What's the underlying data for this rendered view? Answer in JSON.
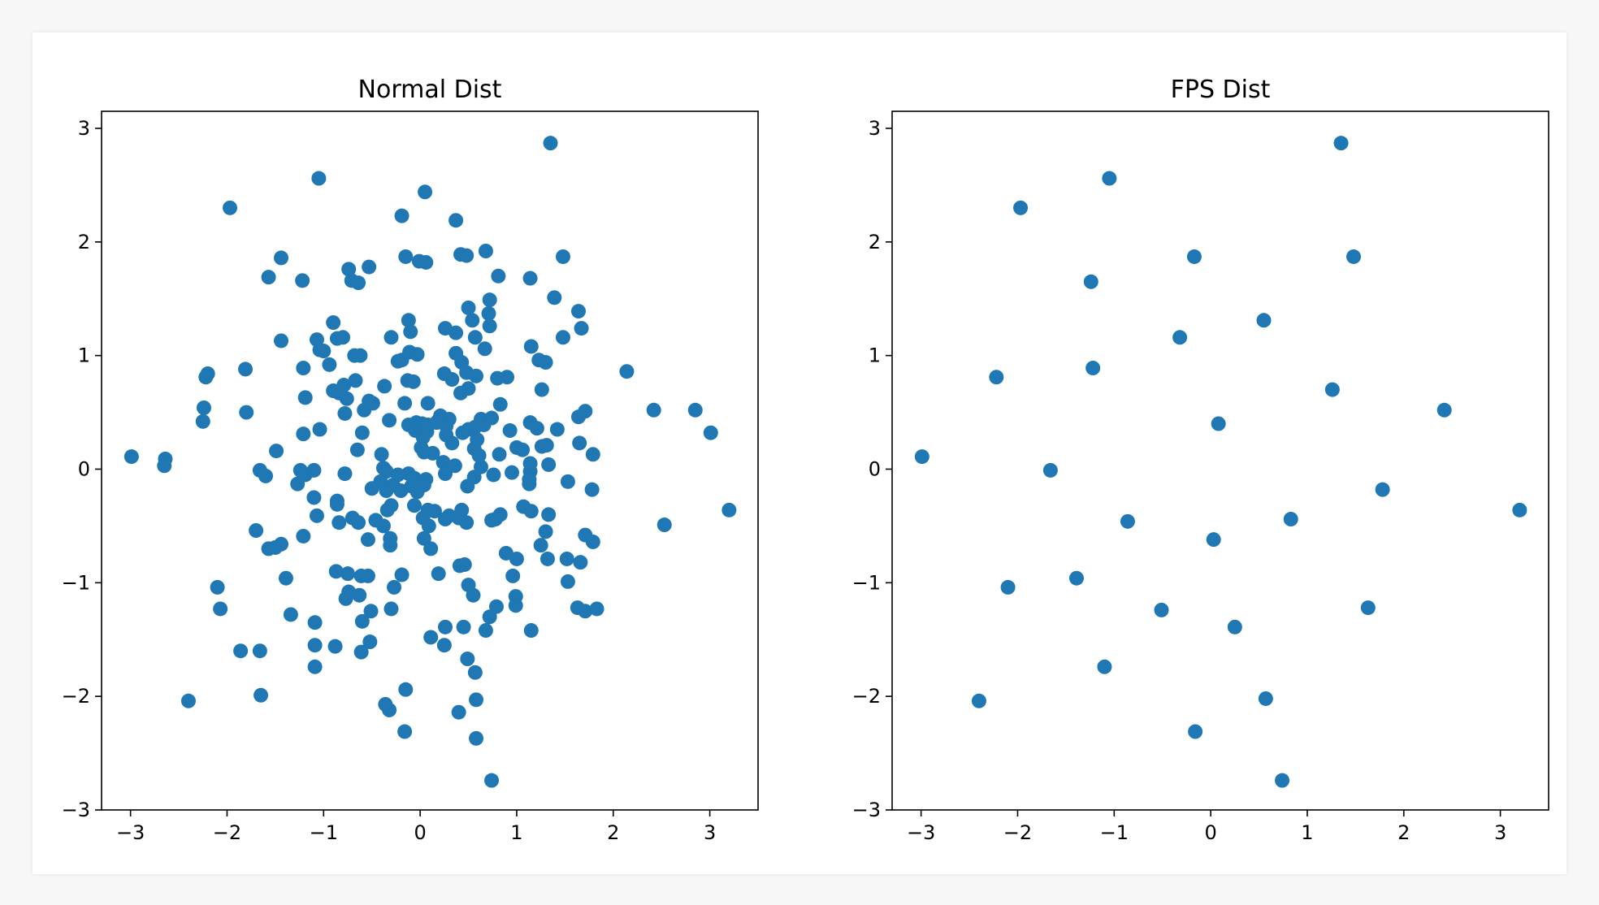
{
  "chart_data": [
    {
      "type": "scatter",
      "title": "Normal Dist",
      "xlabel": "",
      "ylabel": "",
      "xlim": [
        -3.3,
        3.5
      ],
      "ylim": [
        -3.0,
        3.15
      ],
      "xticks": [
        -3,
        -2,
        -1,
        0,
        1,
        2,
        3
      ],
      "yticks": [
        -3,
        -2,
        -1,
        0,
        1,
        2,
        3
      ],
      "grid": false,
      "color": "#1f77b4",
      "points": [
        [
          1.35,
          2.87
        ],
        [
          -1.05,
          2.56
        ],
        [
          0.05,
          2.44
        ],
        [
          -1.97,
          2.3
        ],
        [
          -0.19,
          2.23
        ],
        [
          0.37,
          2.19
        ],
        [
          -1.44,
          1.86
        ],
        [
          0.42,
          1.89
        ],
        [
          0.48,
          1.88
        ],
        [
          0.68,
          1.92
        ],
        [
          1.48,
          1.87
        ],
        [
          -0.15,
          1.87
        ],
        [
          -0.01,
          1.83
        ],
        [
          0.06,
          1.82
        ],
        [
          -0.74,
          1.76
        ],
        [
          -0.53,
          1.78
        ],
        [
          -1.57,
          1.69
        ],
        [
          -1.22,
          1.66
        ],
        [
          -0.71,
          1.66
        ],
        [
          -0.64,
          1.64
        ],
        [
          0.81,
          1.7
        ],
        [
          1.14,
          1.68
        ],
        [
          0.72,
          1.49
        ],
        [
          1.39,
          1.51
        ],
        [
          0.5,
          1.42
        ],
        [
          1.64,
          1.39
        ],
        [
          0.71,
          1.37
        ],
        [
          0.54,
          1.31
        ],
        [
          -0.12,
          1.31
        ],
        [
          -0.9,
          1.29
        ],
        [
          0.26,
          1.24
        ],
        [
          0.72,
          1.26
        ],
        [
          1.67,
          1.24
        ],
        [
          -0.1,
          1.21
        ],
        [
          0.37,
          1.2
        ],
        [
          0.57,
          1.16
        ],
        [
          1.48,
          1.16
        ],
        [
          -0.3,
          1.16
        ],
        [
          -1.44,
          1.13
        ],
        [
          -1.07,
          1.14
        ],
        [
          -0.86,
          1.15
        ],
        [
          -0.8,
          1.16
        ],
        [
          1.15,
          1.08
        ],
        [
          0.67,
          1.06
        ],
        [
          -1.0,
          1.04
        ],
        [
          -1.04,
          1.05
        ],
        [
          -0.11,
          1.03
        ],
        [
          -0.03,
          1.01
        ],
        [
          0.37,
          1.02
        ],
        [
          -0.68,
          1.0
        ],
        [
          -0.62,
          1.0
        ],
        [
          -0.19,
          0.96
        ],
        [
          -0.23,
          0.95
        ],
        [
          1.23,
          0.96
        ],
        [
          1.3,
          0.94
        ],
        [
          0.43,
          0.94
        ],
        [
          -0.94,
          0.92
        ],
        [
          -1.21,
          0.89
        ],
        [
          2.14,
          0.86
        ],
        [
          -2.2,
          0.84
        ],
        [
          -2.22,
          0.81
        ],
        [
          -1.81,
          0.88
        ],
        [
          0.25,
          0.84
        ],
        [
          0.48,
          0.85
        ],
        [
          0.58,
          0.82
        ],
        [
          0.33,
          0.79
        ],
        [
          -0.13,
          0.78
        ],
        [
          -0.07,
          0.77
        ],
        [
          0.8,
          0.8
        ],
        [
          0.9,
          0.81
        ],
        [
          -0.67,
          0.78
        ],
        [
          -0.37,
          0.73
        ],
        [
          0.5,
          0.71
        ],
        [
          1.26,
          0.7
        ],
        [
          0.42,
          0.67
        ],
        [
          -0.79,
          0.74
        ],
        [
          -0.9,
          0.69
        ],
        [
          -0.84,
          0.67
        ],
        [
          -0.76,
          0.62
        ],
        [
          -1.19,
          0.63
        ],
        [
          -0.53,
          0.6
        ],
        [
          -0.49,
          0.58
        ],
        [
          -0.16,
          0.58
        ],
        [
          0.08,
          0.58
        ],
        [
          0.83,
          0.57
        ],
        [
          2.42,
          0.52
        ],
        [
          2.85,
          0.52
        ],
        [
          1.71,
          0.51
        ],
        [
          -2.24,
          0.54
        ],
        [
          -1.8,
          0.5
        ],
        [
          -0.78,
          0.49
        ],
        [
          -0.58,
          0.52
        ],
        [
          0.3,
          0.44
        ],
        [
          0.21,
          0.47
        ],
        [
          0.19,
          0.43
        ],
        [
          0.63,
          0.44
        ],
        [
          0.74,
          0.45
        ],
        [
          1.64,
          0.46
        ],
        [
          -0.32,
          0.43
        ],
        [
          -2.25,
          0.42
        ],
        [
          -0.12,
          0.39
        ],
        [
          -0.04,
          0.41
        ],
        [
          0.02,
          0.4
        ],
        [
          0.08,
          0.39
        ],
        [
          0.17,
          0.41
        ],
        [
          0.27,
          0.38
        ],
        [
          0.5,
          0.35
        ],
        [
          0.57,
          0.37
        ],
        [
          0.66,
          0.39
        ],
        [
          0.93,
          0.34
        ],
        [
          1.14,
          0.41
        ],
        [
          1.21,
          0.36
        ],
        [
          1.42,
          0.35
        ],
        [
          -1.04,
          0.35
        ],
        [
          -0.6,
          0.32
        ],
        [
          -0.05,
          0.34
        ],
        [
          0.07,
          0.33
        ],
        [
          0.44,
          0.32
        ],
        [
          0.27,
          0.3
        ],
        [
          3.01,
          0.32
        ],
        [
          -1.21,
          0.31
        ],
        [
          0.33,
          0.23
        ],
        [
          0.59,
          0.26
        ],
        [
          1.0,
          0.19
        ],
        [
          1.06,
          0.17
        ],
        [
          1.26,
          0.2
        ],
        [
          1.31,
          0.21
        ],
        [
          1.65,
          0.23
        ],
        [
          -1.49,
          0.16
        ],
        [
          -0.65,
          0.17
        ],
        [
          0.01,
          0.19
        ],
        [
          0.04,
          0.15
        ],
        [
          0.13,
          0.14
        ],
        [
          0.56,
          0.18
        ],
        [
          0.61,
          0.12
        ],
        [
          0.82,
          0.13
        ],
        [
          1.79,
          0.13
        ],
        [
          -0.4,
          0.13
        ],
        [
          0.03,
          0.28
        ],
        [
          -2.99,
          0.11
        ],
        [
          -2.64,
          0.09
        ],
        [
          -2.65,
          0.03
        ],
        [
          0.24,
          0.06
        ],
        [
          0.63,
          0.02
        ],
        [
          0.36,
          0.03
        ],
        [
          1.14,
          0.05
        ],
        [
          1.33,
          0.04
        ],
        [
          -0.38,
          0.01
        ],
        [
          -0.35,
          -0.02
        ],
        [
          -0.23,
          -0.05
        ],
        [
          -0.12,
          -0.04
        ],
        [
          -0.06,
          -0.08
        ],
        [
          0.06,
          -0.09
        ],
        [
          0.26,
          -0.04
        ],
        [
          0.56,
          -0.07
        ],
        [
          0.76,
          -0.05
        ],
        [
          0.95,
          -0.03
        ],
        [
          1.14,
          -0.02
        ],
        [
          -1.66,
          -0.01
        ],
        [
          -1.6,
          -0.06
        ],
        [
          -1.24,
          -0.01
        ],
        [
          -1.19,
          -0.05
        ],
        [
          -1.27,
          -0.13
        ],
        [
          -1.1,
          -0.01
        ],
        [
          -0.78,
          -0.04
        ],
        [
          -0.41,
          -0.11
        ],
        [
          -0.28,
          -0.14
        ],
        [
          -0.2,
          -0.19
        ],
        [
          -0.09,
          -0.15
        ],
        [
          -0.03,
          -0.2
        ],
        [
          0.04,
          -0.14
        ],
        [
          1.13,
          -0.09
        ],
        [
          1.53,
          -0.11
        ],
        [
          -0.5,
          -0.17
        ],
        [
          -0.35,
          -0.19
        ],
        [
          0.49,
          -0.15
        ],
        [
          1.13,
          -0.13
        ],
        [
          1.78,
          -0.18
        ],
        [
          -1.1,
          -0.25
        ],
        [
          -0.86,
          -0.28
        ],
        [
          -0.86,
          -0.31
        ],
        [
          -0.3,
          -0.32
        ],
        [
          -0.06,
          -0.32
        ],
        [
          -0.34,
          -0.36
        ],
        [
          0.08,
          -0.36
        ],
        [
          0.15,
          -0.37
        ],
        [
          0.43,
          -0.36
        ],
        [
          1.07,
          -0.33
        ],
        [
          1.33,
          -0.4
        ],
        [
          1.15,
          -0.37
        ],
        [
          3.2,
          -0.36
        ],
        [
          -1.07,
          -0.41
        ],
        [
          -0.7,
          -0.43
        ],
        [
          -0.64,
          -0.47
        ],
        [
          -0.84,
          -0.47
        ],
        [
          -0.46,
          -0.45
        ],
        [
          0.26,
          -0.44
        ],
        [
          0.03,
          -0.43
        ],
        [
          0.3,
          -0.41
        ],
        [
          0.4,
          -0.43
        ],
        [
          0.48,
          -0.47
        ],
        [
          0.74,
          -0.45
        ],
        [
          0.83,
          -0.4
        ],
        [
          0.78,
          -0.44
        ],
        [
          0.09,
          -0.5
        ],
        [
          -0.38,
          -0.5
        ],
        [
          2.53,
          -0.49
        ],
        [
          -1.7,
          -0.54
        ],
        [
          -1.21,
          -0.59
        ],
        [
          -0.54,
          -0.62
        ],
        [
          -0.31,
          -0.61
        ],
        [
          0.04,
          -0.61
        ],
        [
          1.71,
          -0.58
        ],
        [
          1.79,
          -0.64
        ],
        [
          1.3,
          -0.55
        ],
        [
          -1.44,
          -0.66
        ],
        [
          -1.5,
          -0.69
        ],
        [
          -1.57,
          -0.7
        ],
        [
          -0.31,
          -0.67
        ],
        [
          0.11,
          -0.7
        ],
        [
          1.25,
          -0.67
        ],
        [
          0.89,
          -0.74
        ],
        [
          1.0,
          -0.79
        ],
        [
          1.52,
          -0.79
        ],
        [
          1.66,
          -0.82
        ],
        [
          1.32,
          -0.79
        ],
        [
          -0.87,
          -0.9
        ],
        [
          -0.75,
          -0.92
        ],
        [
          -0.61,
          -0.94
        ],
        [
          -0.54,
          -0.94
        ],
        [
          0.41,
          -0.85
        ],
        [
          0.46,
          -0.84
        ],
        [
          -0.19,
          -0.93
        ],
        [
          0.19,
          -0.92
        ],
        [
          -1.39,
          -0.96
        ],
        [
          0.96,
          -0.94
        ],
        [
          1.53,
          -0.99
        ],
        [
          -0.74,
          -1.08
        ],
        [
          -0.77,
          -1.14
        ],
        [
          -0.63,
          -1.11
        ],
        [
          -0.27,
          -1.04
        ],
        [
          0.5,
          -1.02
        ],
        [
          0.55,
          -1.11
        ],
        [
          0.99,
          -1.12
        ],
        [
          -2.1,
          -1.04
        ],
        [
          -2.07,
          -1.23
        ],
        [
          -1.34,
          -1.28
        ],
        [
          -1.09,
          -1.35
        ],
        [
          -0.6,
          -1.34
        ],
        [
          -0.51,
          -1.25
        ],
        [
          -0.3,
          -1.23
        ],
        [
          0.79,
          -1.21
        ],
        [
          0.72,
          -1.3
        ],
        [
          0.99,
          -1.2
        ],
        [
          1.63,
          -1.22
        ],
        [
          1.71,
          -1.25
        ],
        [
          1.83,
          -1.23
        ],
        [
          0.11,
          -1.48
        ],
        [
          0.26,
          -1.39
        ],
        [
          0.45,
          -1.39
        ],
        [
          0.68,
          -1.42
        ],
        [
          1.15,
          -1.42
        ],
        [
          -1.09,
          -1.55
        ],
        [
          -0.88,
          -1.56
        ],
        [
          -0.52,
          -1.52
        ],
        [
          0.25,
          -1.55
        ],
        [
          -1.86,
          -1.6
        ],
        [
          -1.66,
          -1.6
        ],
        [
          -0.61,
          -1.61
        ],
        [
          0.49,
          -1.67
        ],
        [
          0.57,
          -1.79
        ],
        [
          -1.09,
          -1.74
        ],
        [
          -0.15,
          -1.94
        ],
        [
          -1.65,
          -1.99
        ],
        [
          -2.4,
          -2.04
        ],
        [
          -0.36,
          -2.07
        ],
        [
          -0.32,
          -2.12
        ],
        [
          0.4,
          -2.14
        ],
        [
          0.58,
          -2.03
        ],
        [
          -0.16,
          -2.31
        ],
        [
          0.58,
          -2.37
        ],
        [
          0.74,
          -2.74
        ]
      ]
    },
    {
      "type": "scatter",
      "title": "FPS Dist",
      "xlabel": "",
      "ylabel": "",
      "xlim": [
        -3.3,
        3.5
      ],
      "ylim": [
        -3.0,
        3.15
      ],
      "xticks": [
        -3,
        -2,
        -1,
        0,
        1,
        2,
        3
      ],
      "yticks": [
        -3,
        -2,
        -1,
        0,
        1,
        2,
        3
      ],
      "grid": false,
      "color": "#1f77b4",
      "points": [
        [
          1.35,
          2.87
        ],
        [
          -1.05,
          2.56
        ],
        [
          -1.97,
          2.3
        ],
        [
          -0.17,
          1.87
        ],
        [
          1.48,
          1.87
        ],
        [
          -1.24,
          1.65
        ],
        [
          0.55,
          1.31
        ],
        [
          -0.32,
          1.16
        ],
        [
          -1.22,
          0.89
        ],
        [
          -2.22,
          0.81
        ],
        [
          1.26,
          0.7
        ],
        [
          2.42,
          0.52
        ],
        [
          0.08,
          0.4
        ],
        [
          -2.99,
          0.11
        ],
        [
          -1.66,
          -0.01
        ],
        [
          1.78,
          -0.18
        ],
        [
          3.2,
          -0.36
        ],
        [
          0.83,
          -0.44
        ],
        [
          -0.86,
          -0.46
        ],
        [
          0.03,
          -0.62
        ],
        [
          -1.39,
          -0.96
        ],
        [
          -2.1,
          -1.04
        ],
        [
          1.63,
          -1.22
        ],
        [
          -0.51,
          -1.24
        ],
        [
          0.25,
          -1.39
        ],
        [
          -1.1,
          -1.74
        ],
        [
          0.57,
          -2.02
        ],
        [
          -2.4,
          -2.04
        ],
        [
          -0.16,
          -2.31
        ],
        [
          0.74,
          -2.74
        ]
      ]
    }
  ]
}
